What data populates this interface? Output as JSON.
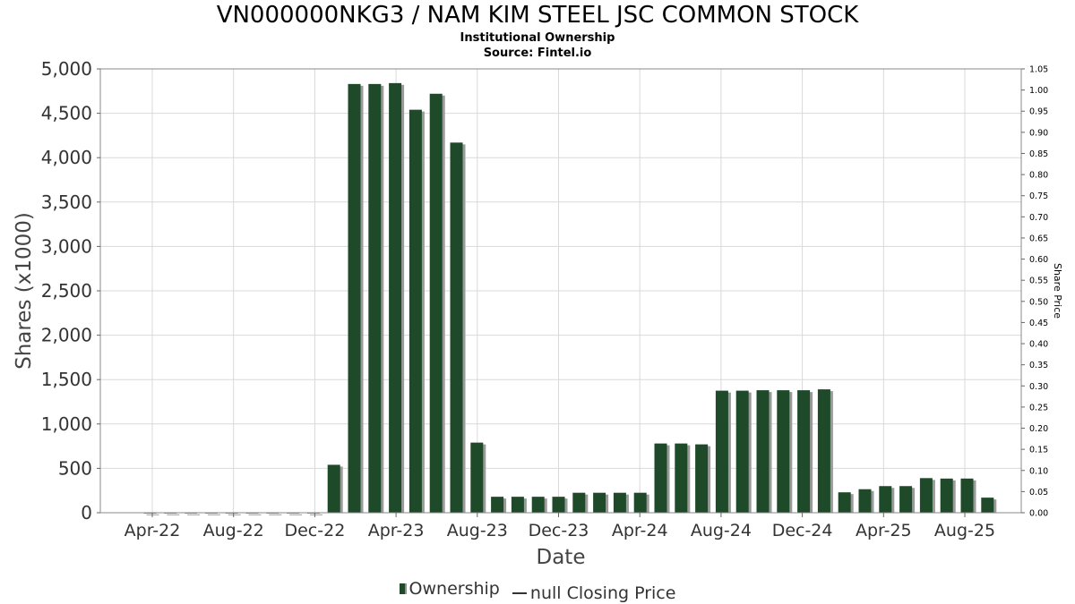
{
  "header": {
    "title": "VN000000NKG3 / NAM KIM STEEL JSC COMMON STOCK",
    "subtitle": "Institutional Ownership",
    "source": "Source: Fintel.io"
  },
  "legend": {
    "ownership_label": "Ownership",
    "price_label": "null Closing Price"
  },
  "colors": {
    "bar": "#1e4a2a",
    "bar_shadow": "#9a9a9a",
    "grid": "#d9d9d9",
    "frame": "#888888"
  },
  "chart_data": {
    "type": "bar",
    "title": "VN000000NKG3 / NAM KIM STEEL JSC COMMON STOCK",
    "xlabel": "Date",
    "ylabel": "Shares (x1000)",
    "y2label": "Share Price",
    "ylim": [
      0,
      5000
    ],
    "y2lim": [
      0,
      1.05
    ],
    "grid": true,
    "legend_position": "bottom",
    "yticks": [
      "0",
      "500",
      "1,000",
      "1,500",
      "2,000",
      "2,500",
      "3,000",
      "3,500",
      "4,000",
      "4,500",
      "5,000"
    ],
    "y2ticks": [
      "0.00",
      "0.05",
      "0.10",
      "0.15",
      "0.20",
      "0.25",
      "0.30",
      "0.35",
      "0.40",
      "0.45",
      "0.50",
      "0.55",
      "0.60",
      "0.65",
      "0.70",
      "0.75",
      "0.80",
      "0.85",
      "0.90",
      "0.95",
      "1.00",
      "1.05"
    ],
    "xticks": [
      "Apr-22",
      "Aug-22",
      "Dec-22",
      "Apr-23",
      "Aug-23",
      "Dec-23",
      "Apr-24",
      "Aug-24",
      "Dec-24",
      "Apr-25",
      "Aug-25"
    ],
    "series": [
      {
        "name": "Ownership",
        "values": [
          2,
          2,
          2,
          2,
          2,
          2,
          2,
          2,
          2,
          540,
          4830,
          4830,
          4840,
          4540,
          4720,
          4170,
          790,
          180,
          180,
          180,
          180,
          225,
          225,
          225,
          225,
          780,
          780,
          770,
          1375,
          1375,
          1380,
          1380,
          1380,
          1390,
          230,
          265,
          300,
          300,
          390,
          385,
          385,
          170
        ]
      }
    ]
  }
}
